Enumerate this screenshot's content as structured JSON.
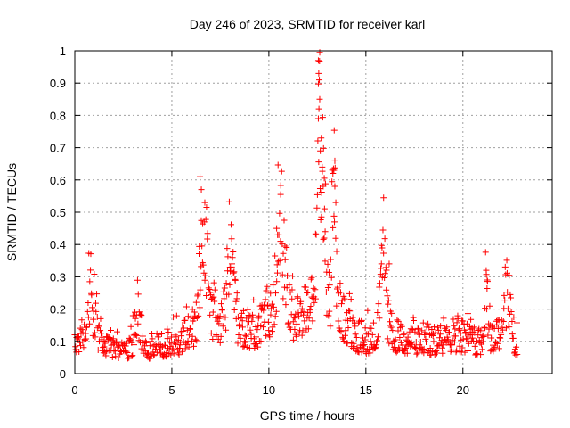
{
  "chart_data": {
    "type": "scatter",
    "title": "Day 246 of 2023, SRMTID for receiver karl",
    "xlabel": "GPS time / hours",
    "ylabel": "SRMTID / TECUs",
    "xlim": [
      0,
      24.6
    ],
    "ylim": [
      0,
      1
    ],
    "xticks": [
      "0",
      "5",
      "10",
      "15",
      "20"
    ],
    "xtick_values": [
      0,
      5,
      10,
      15,
      20
    ],
    "yticks": [
      "0",
      "0.1",
      "0.2",
      "0.3",
      "0.4",
      "0.5",
      "0.6",
      "0.7",
      "0.8",
      "0.9",
      "1"
    ],
    "ytick_values": [
      0,
      0.1,
      0.2,
      0.3,
      0.4,
      0.5,
      0.6,
      0.7,
      0.8,
      0.9,
      1.0
    ],
    "grid": true,
    "marker": "+",
    "series_color": "#ff0000",
    "series": [
      {
        "name": "SRMTID",
        "x_start": 0,
        "x_end": 22.8,
        "x_step": 0.025,
        "baseline_knots": [
          [
            0,
            0.075
          ],
          [
            0.5,
            0.08
          ],
          [
            0.8,
            0.14
          ],
          [
            1.0,
            0.11
          ],
          [
            1.5,
            0.08
          ],
          [
            2.0,
            0.075
          ],
          [
            2.5,
            0.07
          ],
          [
            3.0,
            0.08
          ],
          [
            3.3,
            0.12
          ],
          [
            3.6,
            0.065
          ],
          [
            4.0,
            0.075
          ],
          [
            4.5,
            0.09
          ],
          [
            5.0,
            0.1
          ],
          [
            5.5,
            0.105
          ],
          [
            6.0,
            0.14
          ],
          [
            6.5,
            0.16
          ],
          [
            7.0,
            0.17
          ],
          [
            7.5,
            0.14
          ],
          [
            8.0,
            0.18
          ],
          [
            8.5,
            0.15
          ],
          [
            9.0,
            0.14
          ],
          [
            9.5,
            0.14
          ],
          [
            10.0,
            0.17
          ],
          [
            10.5,
            0.23
          ],
          [
            11.0,
            0.19
          ],
          [
            11.5,
            0.18
          ],
          [
            12.0,
            0.2
          ],
          [
            12.5,
            0.2
          ],
          [
            13.0,
            0.2
          ],
          [
            13.5,
            0.22
          ],
          [
            14.0,
            0.15
          ],
          [
            14.5,
            0.12
          ],
          [
            15.0,
            0.11
          ],
          [
            15.5,
            0.12
          ],
          [
            16.0,
            0.15
          ],
          [
            16.5,
            0.12
          ],
          [
            17.0,
            0.1
          ],
          [
            17.5,
            0.1
          ],
          [
            18.0,
            0.1
          ],
          [
            18.5,
            0.1
          ],
          [
            19.0,
            0.11
          ],
          [
            19.5,
            0.12
          ],
          [
            20.0,
            0.12
          ],
          [
            20.5,
            0.1
          ],
          [
            21.0,
            0.1
          ],
          [
            21.5,
            0.11
          ],
          [
            22.0,
            0.14
          ],
          [
            22.5,
            0.1
          ],
          [
            22.8,
            0.1
          ]
        ],
        "peaks": [
          [
            0.8,
            0.09,
            0.35
          ],
          [
            3.25,
            0.07,
            0.25
          ],
          [
            6.5,
            0.22,
            0.12
          ],
          [
            6.75,
            0.22,
            0.2
          ],
          [
            8.0,
            0.15,
            0.25
          ],
          [
            10.5,
            0.18,
            0.2
          ],
          [
            10.8,
            0.14,
            0.2
          ],
          [
            12.35,
            0.05,
            0.15
          ],
          [
            12.6,
            0.55,
            0.12
          ],
          [
            12.85,
            0.42,
            0.12
          ],
          [
            13.35,
            0.35,
            0.14
          ],
          [
            15.9,
            0.18,
            0.18
          ],
          [
            21.2,
            0.18,
            0.12
          ],
          [
            22.3,
            0.13,
            0.2
          ]
        ],
        "outliers": [
          [
            6.45,
            0.61
          ],
          [
            6.52,
            0.57
          ],
          [
            6.7,
            0.53
          ],
          [
            12.55,
            0.97
          ],
          [
            12.57,
            0.93
          ],
          [
            12.6,
            0.91
          ],
          [
            12.62,
            0.85
          ],
          [
            12.58,
            0.82
          ],
          [
            12.55,
            0.79
          ],
          [
            12.7,
            0.73
          ],
          [
            12.65,
            0.69
          ],
          [
            12.75,
            0.64
          ],
          [
            12.8,
            0.58
          ],
          [
            12.72,
            0.56
          ],
          [
            13.35,
            0.63
          ],
          [
            13.3,
            0.62
          ],
          [
            13.4,
            0.58
          ],
          [
            13.45,
            0.53
          ],
          [
            13.38,
            0.47
          ],
          [
            12.9,
            0.44
          ],
          [
            12.85,
            0.42
          ],
          [
            10.4,
            0.45
          ],
          [
            10.45,
            0.43
          ],
          [
            10.6,
            0.41
          ],
          [
            21.2,
            0.32
          ],
          [
            21.25,
            0.29
          ],
          [
            15.8,
            0.34
          ],
          [
            16.2,
            0.34
          ],
          [
            8.1,
            0.34
          ],
          [
            8.0,
            0.33
          ]
        ],
        "noise_seed": 246
      }
    ]
  }
}
